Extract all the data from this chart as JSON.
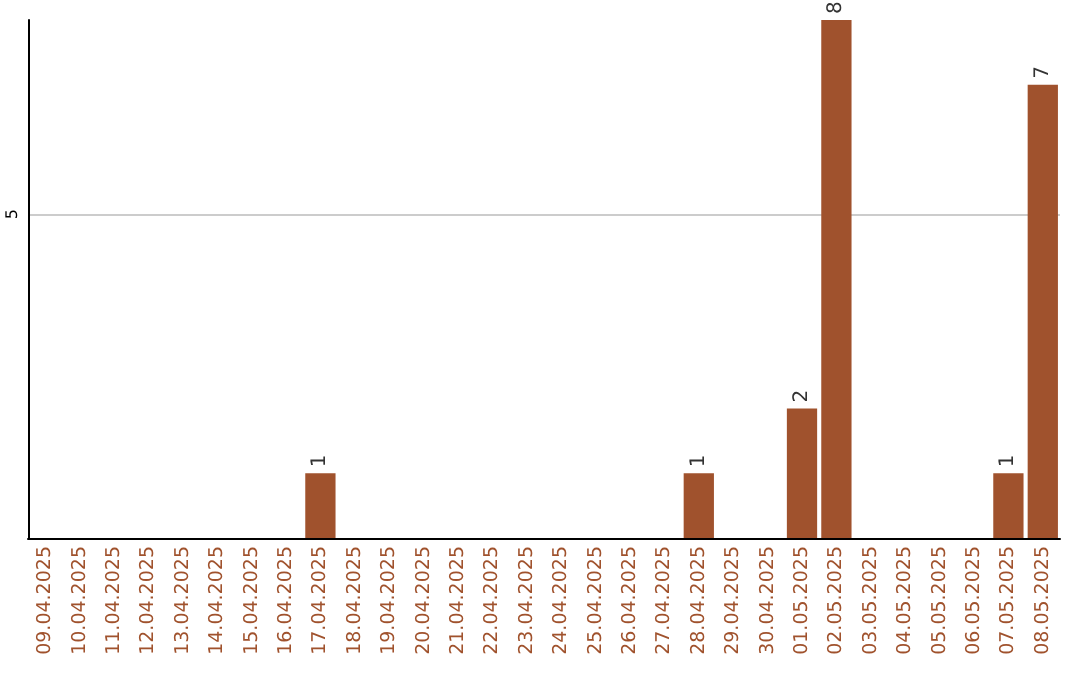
{
  "chart_data": {
    "type": "bar",
    "categories": [
      "09.04.2025",
      "10.04.2025",
      "11.04.2025",
      "12.04.2025",
      "13.04.2025",
      "14.04.2025",
      "15.04.2025",
      "16.04.2025",
      "17.04.2025",
      "18.04.2025",
      "19.04.2025",
      "20.04.2025",
      "21.04.2025",
      "22.04.2025",
      "23.04.2025",
      "24.04.2025",
      "25.04.2025",
      "26.04.2025",
      "27.04.2025",
      "28.04.2025",
      "29.04.2025",
      "30.04.2025",
      "01.05.2025",
      "02.05.2025",
      "03.05.2025",
      "04.05.2025",
      "05.05.2025",
      "06.05.2025",
      "07.05.2025",
      "08.05.2025"
    ],
    "values": [
      0,
      0,
      0,
      0,
      0,
      0,
      0,
      0,
      1,
      0,
      0,
      0,
      0,
      0,
      0,
      0,
      0,
      0,
      0,
      1,
      0,
      0,
      2,
      8,
      0,
      0,
      0,
      0,
      1,
      7
    ],
    "value_labels": [
      null,
      null,
      null,
      null,
      null,
      null,
      null,
      null,
      "1",
      null,
      null,
      null,
      null,
      null,
      null,
      null,
      null,
      null,
      null,
      "1",
      null,
      null,
      "2",
      "8",
      null,
      null,
      null,
      null,
      "1",
      "7"
    ],
    "color": "#a0522d",
    "ylim": [
      0,
      8
    ],
    "yticks": [
      5
    ],
    "grid": "y"
  }
}
